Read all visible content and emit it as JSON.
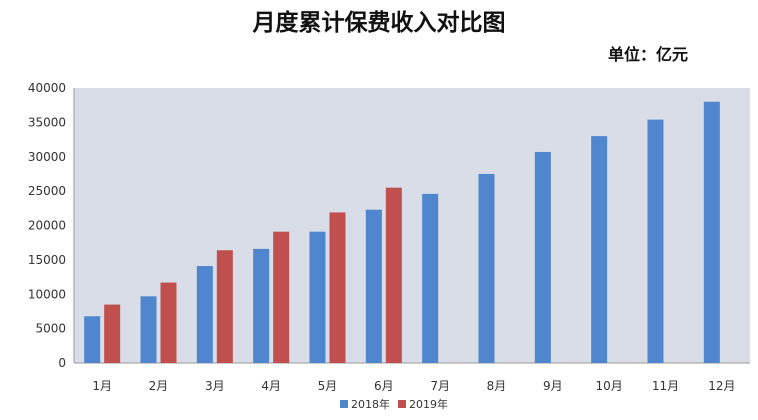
{
  "chart_data": {
    "type": "bar",
    "title": "月度累计保费收入对比图",
    "unit_label": "单位：亿元",
    "categories": [
      "1月",
      "2月",
      "3月",
      "4月",
      "5月",
      "6月",
      "7月",
      "8月",
      "9月",
      "10月",
      "11月",
      "12月"
    ],
    "series": [
      {
        "name": "2018年",
        "color": "#4f86cd",
        "values": [
          6800,
          9700,
          14100,
          16600,
          19100,
          22300,
          24600,
          27500,
          30700,
          33000,
          35400,
          38000
        ]
      },
      {
        "name": "2019年",
        "color": "#c0504d",
        "values": [
          8500,
          11700,
          16400,
          19100,
          21900,
          25500,
          null,
          null,
          null,
          null,
          null,
          null
        ]
      }
    ],
    "ylim": [
      0,
      40000
    ],
    "yticks": [
      0,
      5000,
      10000,
      15000,
      20000,
      25000,
      30000,
      35000,
      40000
    ],
    "grid": false,
    "legend_position": "bottom",
    "plot_background": "#d9dde7"
  }
}
